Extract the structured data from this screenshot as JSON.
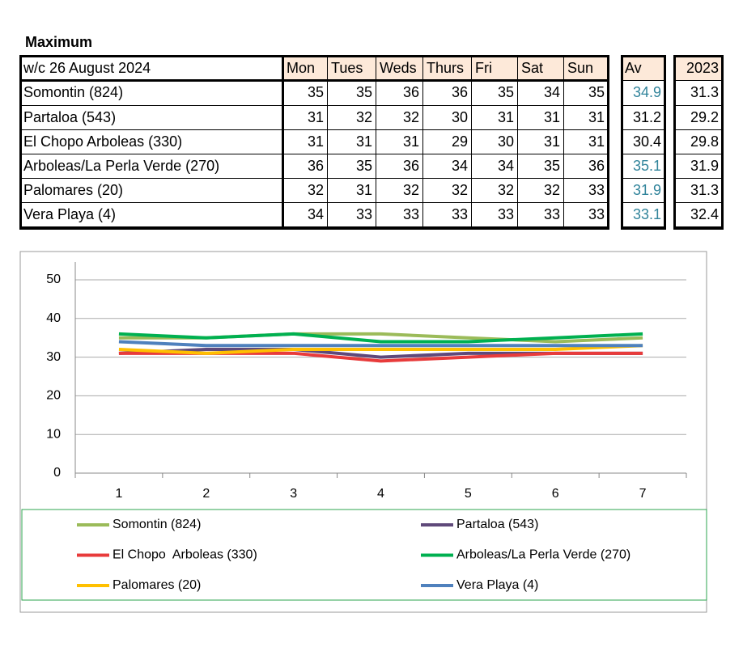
{
  "title": "Maximum",
  "table": {
    "header": [
      "w/c  26 August 2024",
      "Mon",
      "Tues",
      "Weds",
      "Thurs",
      "Fri",
      "Sat",
      "Sun",
      "Av",
      "2023"
    ],
    "rows": [
      [
        "Somontin (824)",
        35,
        35,
        36,
        36,
        35,
        34,
        35,
        34.9,
        31.3
      ],
      [
        "Partaloa (543)",
        31,
        32,
        32,
        30,
        31,
        31,
        31,
        31.2,
        29.2
      ],
      [
        "El Chopo  Arboleas (330)",
        31,
        31,
        31,
        29,
        30,
        31,
        31,
        30.4,
        29.8
      ],
      [
        "Arboleas/La Perla Verde (270)",
        36,
        35,
        36,
        34,
        34,
        35,
        36,
        35.1,
        31.9
      ],
      [
        "Palomares (20)",
        32,
        31,
        32,
        32,
        32,
        32,
        33,
        31.9,
        31.3
      ],
      [
        "Vera Playa (4)",
        34,
        33,
        33,
        33,
        33,
        33,
        33,
        33.1,
        32.4
      ]
    ]
  },
  "chart_data": {
    "type": "line",
    "categories": [
      1,
      2,
      3,
      4,
      5,
      6,
      7
    ],
    "ylim": [
      0,
      50
    ],
    "yticks": [
      0,
      10,
      20,
      30,
      40,
      50
    ],
    "grid": true,
    "series": [
      {
        "name": "Somontin (824)",
        "color": "#9bbb59",
        "values": [
          35,
          35,
          36,
          36,
          35,
          34,
          35
        ]
      },
      {
        "name": "Partaloa (543)",
        "color": "#5f497a",
        "values": [
          31,
          32,
          32,
          30,
          31,
          31,
          31
        ]
      },
      {
        "name": "El Chopo  Arboleas (330)",
        "color": "#e83b3b",
        "values": [
          31,
          31,
          31,
          29,
          30,
          31,
          31
        ]
      },
      {
        "name": "Arboleas/La Perla Verde (270)",
        "color": "#00b050",
        "values": [
          36,
          35,
          36,
          34,
          34,
          35,
          36
        ]
      },
      {
        "name": "Palomares (20)",
        "color": "#ffc000",
        "values": [
          32,
          31,
          32,
          32,
          32,
          32,
          33
        ]
      },
      {
        "name": "Vera Playa (4)",
        "color": "#4f81bd",
        "values": [
          34,
          33,
          33,
          33,
          33,
          33,
          33
        ]
      }
    ]
  }
}
